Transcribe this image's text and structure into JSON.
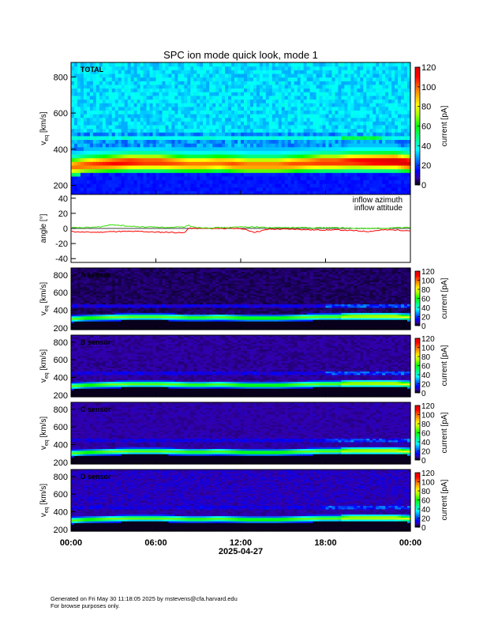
{
  "figure": {
    "title": "SPC ion mode quick look, mode 1",
    "date_label": "2025-04-27",
    "footer_line1": "Generated on Fri May 30 11:18:05 2025 by mstevens@cfa.harvard.edu",
    "footer_line2": "For browse purposes only."
  },
  "chart_data": [
    {
      "type": "heatmap",
      "panel_label": "TOTAL",
      "ylabel_main": "v",
      "ylabel_sub": "eq",
      "ylabel_unit": "[km/s]",
      "ylim": [
        150,
        880
      ],
      "yticks": [
        200,
        400,
        600,
        800
      ],
      "colorbar_label": "current [pA]",
      "colorbar_range": [
        0,
        120
      ],
      "colorbar_ticks": [
        0,
        20,
        40,
        60,
        80,
        100,
        120
      ],
      "core_speed_kms": [
        305,
        315,
        320,
        325,
        330,
        330,
        330,
        325,
        320,
        320,
        325,
        320,
        315,
        315,
        315,
        320,
        325,
        330,
        330,
        335,
        335,
        335,
        335,
        325
      ],
      "core_peak_pA": [
        80,
        85,
        90,
        95,
        95,
        90,
        90,
        85,
        80,
        80,
        80,
        85,
        80,
        80,
        80,
        85,
        85,
        90,
        90,
        95,
        100,
        105,
        110,
        105
      ]
    },
    {
      "type": "line",
      "ylabel": "angle [°]",
      "ylim": [
        -45,
        45
      ],
      "yticks": [
        -40,
        -20,
        0,
        20,
        40
      ],
      "x_hours": [
        0,
        1,
        2,
        3,
        4,
        5,
        6,
        7,
        8,
        8.3,
        9,
        10,
        11,
        12,
        13,
        14,
        15,
        16,
        17,
        18,
        19,
        20,
        21,
        22,
        23,
        24
      ],
      "series": [
        {
          "name": "inflow azimuth",
          "color": "#ff0000",
          "values": [
            -4,
            -5,
            -5,
            -4,
            -4,
            -4,
            -5,
            -5,
            -6,
            0,
            0,
            0,
            0,
            0,
            -5,
            -1,
            -1,
            -1,
            -2,
            -2,
            -2,
            -3,
            -4,
            -2,
            -2,
            -3
          ]
        },
        {
          "name": "inflow attitude",
          "color": "#33dd00",
          "values": [
            1,
            1,
            2,
            5,
            3,
            2,
            2,
            1,
            2,
            4,
            1,
            1,
            1,
            2,
            2,
            1,
            1,
            1,
            1,
            1,
            1,
            0,
            0,
            0,
            1,
            1
          ]
        }
      ]
    },
    {
      "type": "heatmap",
      "panel_label": "A sensor",
      "ylabel_main": "v",
      "ylabel_sub": "eq",
      "ylabel_unit": "[km/s]",
      "ylim": [
        180,
        880
      ],
      "yticks": [
        200,
        400,
        600,
        800
      ],
      "colorbar_label": "current [pA]",
      "colorbar_range": [
        0,
        120
      ],
      "colorbar_ticks": [
        0,
        20,
        40,
        60,
        80,
        100,
        120
      ]
    },
    {
      "type": "heatmap",
      "panel_label": "B sensor",
      "ylabel_main": "v",
      "ylabel_sub": "eq",
      "ylabel_unit": "[km/s]",
      "ylim": [
        180,
        880
      ],
      "yticks": [
        200,
        400,
        600,
        800
      ],
      "colorbar_label": "current [pA]",
      "colorbar_range": [
        0,
        120
      ],
      "colorbar_ticks": [
        0,
        20,
        40,
        60,
        80,
        100,
        120
      ]
    },
    {
      "type": "heatmap",
      "panel_label": "C sensor",
      "ylabel_main": "v",
      "ylabel_sub": "eq",
      "ylabel_unit": "[km/s]",
      "ylim": [
        180,
        880
      ],
      "yticks": [
        200,
        400,
        600,
        800
      ],
      "colorbar_label": "current [pA]",
      "colorbar_range": [
        0,
        120
      ],
      "colorbar_ticks": [
        0,
        20,
        40,
        60,
        80,
        100,
        120
      ]
    },
    {
      "type": "heatmap",
      "panel_label": "D sensor",
      "ylabel_main": "v",
      "ylabel_sub": "eq",
      "ylabel_unit": "[km/s]",
      "ylim": [
        180,
        880
      ],
      "yticks": [
        200,
        400,
        600,
        800
      ],
      "colorbar_label": "current [pA]",
      "colorbar_range": [
        0,
        120
      ],
      "colorbar_ticks": [
        0,
        20,
        40,
        60,
        80,
        100,
        120
      ]
    }
  ],
  "x_axis": {
    "xlim_hours": [
      0,
      24
    ],
    "tick_hours": [
      0,
      6,
      12,
      18,
      24
    ],
    "tick_labels": [
      "00:00",
      "06:00",
      "12:00",
      "18:00",
      "00:00"
    ]
  }
}
